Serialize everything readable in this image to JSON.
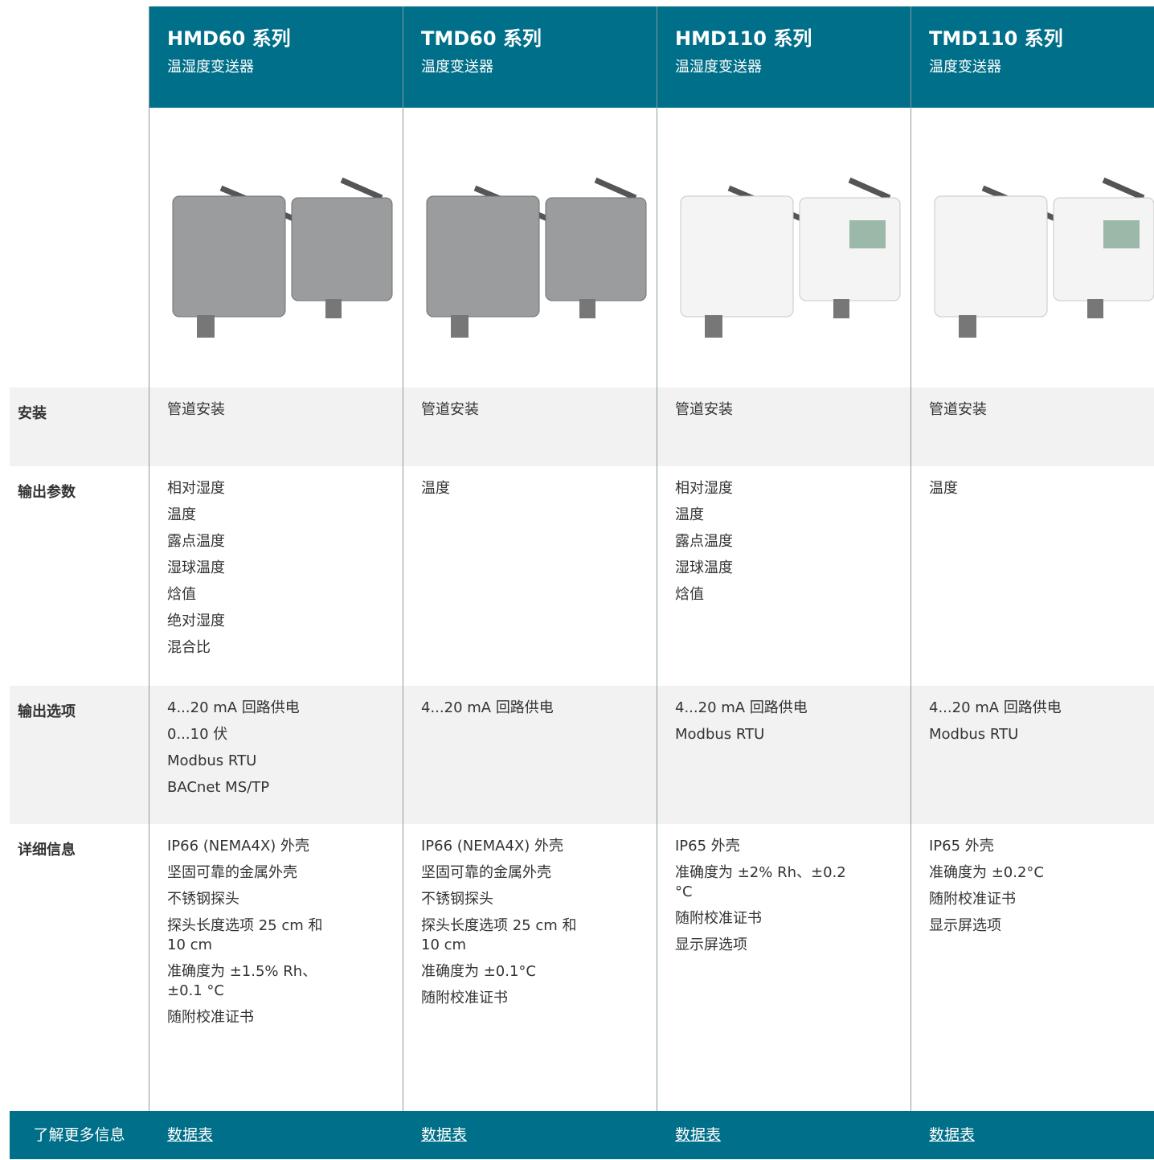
{
  "products": [
    {
      "title": "HMD60 系列",
      "subtitle": "温湿度变送器"
    },
    {
      "title": "TMD60 系列",
      "subtitle": "温度变送器"
    },
    {
      "title": "HMD110 系列",
      "subtitle": "温湿度变送器"
    },
    {
      "title": "TMD110 系列",
      "subtitle": "温度变送器"
    }
  ],
  "rows": [
    {
      "label": "安装",
      "cells": [
        [
          "管道安装"
        ],
        [
          "管道安装"
        ],
        [
          "管道安装"
        ],
        [
          "管道安装"
        ]
      ]
    },
    {
      "label": "输出参数",
      "cells": [
        [
          "相对湿度",
          "温度",
          "露点温度",
          "湿球温度",
          "焓值",
          "绝对湿度",
          "混合比"
        ],
        [
          "温度"
        ],
        [
          "相对湿度",
          "温度",
          "露点温度",
          "湿球温度",
          "焓值"
        ],
        [
          "温度"
        ]
      ]
    },
    {
      "label": "输出选项",
      "cells": [
        [
          "4...20 mA 回路供电",
          "0...10 伏",
          "Modbus RTU",
          "BACnet MS/TP"
        ],
        [
          "4...20 mA 回路供电"
        ],
        [
          "4...20 mA 回路供电",
          "Modbus RTU"
        ],
        [
          "4...20 mA 回路供电",
          "Modbus RTU"
        ]
      ]
    },
    {
      "label": "详细信息",
      "cells": [
        [
          "IP66 (NEMA4X) 外壳",
          "坚固可靠的金属外壳",
          "不锈钢探头",
          "探头长度选项 25 cm 和 10 cm",
          "准确度为 ±1.5% Rh、±0.1 °C",
          "随附校准证书"
        ],
        [
          "IP66 (NEMA4X) 外壳",
          "坚固可靠的金属外壳",
          "不锈钢探头",
          "探头长度选项 25 cm 和 10 cm",
          "准确度为 ±0.1°C",
          "随附校准证书"
        ],
        [
          "IP65 外壳",
          "准确度为 ±2% Rh、±0.2 °C",
          "随附校准证书",
          "显示屏选项"
        ],
        [
          "IP65 外壳",
          "准确度为 ±0.2°C",
          "随附校准证书",
          "显示屏选项"
        ]
      ]
    }
  ],
  "footer": {
    "label": "了解更多信息",
    "links": [
      "数据表",
      "数据表",
      "数据表",
      "数据表"
    ]
  }
}
